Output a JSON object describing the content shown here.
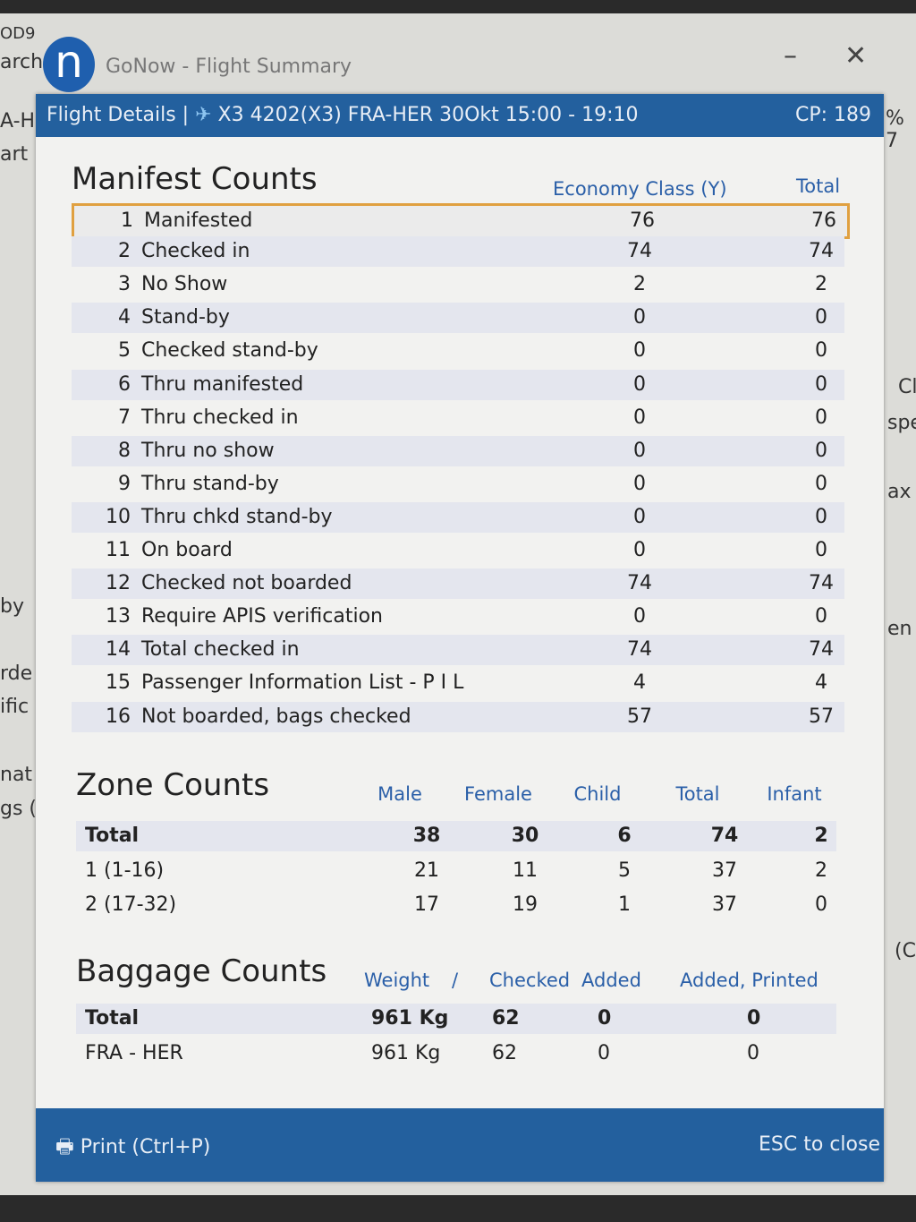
{
  "background_fragments": {
    "left": [
      "OD9",
      "arch",
      "A-H",
      "art",
      "by",
      "rde",
      "ific",
      "nat",
      "gs ("
    ],
    "right": [
      "% 7",
      "Cl",
      "spe",
      "ax",
      "en",
      "(C"
    ]
  },
  "window": {
    "title": "GoNow - Flight Summary",
    "logo_letter": "n"
  },
  "dialog": {
    "title": "Flight Details |",
    "flight": "X3 4202(X3)  FRA-HER  30Okt 15:00 - 19:10",
    "cp": "CP: 189",
    "plane_icon": "plane-icon",
    "accent": "#23609e"
  },
  "manifest": {
    "title": "Manifest Counts",
    "col_econ": "Economy Class (Y)",
    "col_total": "Total",
    "rows": [
      {
        "n": "1",
        "label": "Manifested",
        "econ": "76",
        "total": "76"
      },
      {
        "n": "2",
        "label": "Checked in",
        "econ": "74",
        "total": "74"
      },
      {
        "n": "3",
        "label": "No Show",
        "econ": "2",
        "total": "2"
      },
      {
        "n": "4",
        "label": "Stand-by",
        "econ": "0",
        "total": "0"
      },
      {
        "n": "5",
        "label": "Checked stand-by",
        "econ": "0",
        "total": "0"
      },
      {
        "n": "6",
        "label": "Thru manifested",
        "econ": "0",
        "total": "0"
      },
      {
        "n": "7",
        "label": "Thru checked in",
        "econ": "0",
        "total": "0"
      },
      {
        "n": "8",
        "label": "Thru no show",
        "econ": "0",
        "total": "0"
      },
      {
        "n": "9",
        "label": "Thru stand-by",
        "econ": "0",
        "total": "0"
      },
      {
        "n": "10",
        "label": "Thru chkd stand-by",
        "econ": "0",
        "total": "0"
      },
      {
        "n": "11",
        "label": "On board",
        "econ": "0",
        "total": "0"
      },
      {
        "n": "12",
        "label": "Checked not boarded",
        "econ": "74",
        "total": "74"
      },
      {
        "n": "13",
        "label": "Require APIS verification",
        "econ": "0",
        "total": "0"
      },
      {
        "n": "14",
        "label": "Total checked in",
        "econ": "74",
        "total": "74"
      },
      {
        "n": "15",
        "label": "Passenger Information List - P I L",
        "econ": "4",
        "total": "4"
      },
      {
        "n": "16",
        "label": "Not boarded, bags checked",
        "econ": "57",
        "total": "57"
      }
    ]
  },
  "zone": {
    "title": "Zone Counts",
    "cols": [
      "Male",
      "Female",
      "Child",
      "Total",
      "Infant"
    ],
    "rows": [
      {
        "label": "Total",
        "vals": [
          "38",
          "30",
          "6",
          "74",
          "2"
        ]
      },
      {
        "label": "1 (1-16)",
        "vals": [
          "21",
          "11",
          "5",
          "37",
          "2"
        ]
      },
      {
        "label": "2 (17-32)",
        "vals": [
          "17",
          "19",
          "1",
          "37",
          "0"
        ]
      }
    ]
  },
  "baggage": {
    "title": "Baggage Counts",
    "cols": [
      "Weight",
      "/",
      "Checked",
      "Added",
      "Added, Printed"
    ],
    "rows": [
      {
        "label": "Total",
        "vals": [
          "961 Kg",
          "62",
          "0",
          "0"
        ]
      },
      {
        "label": "FRA - HER",
        "vals": [
          "961 Kg",
          "62",
          "0",
          "0"
        ]
      }
    ]
  },
  "footer": {
    "print": "Print (Ctrl+P)",
    "close": "ESC to close"
  }
}
